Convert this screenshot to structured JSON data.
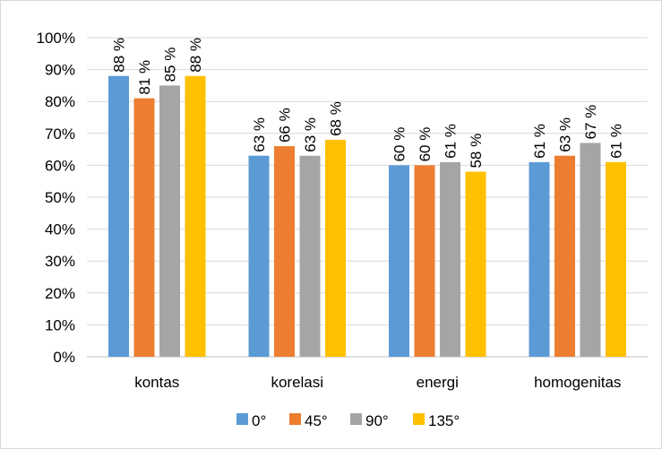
{
  "chart_data": {
    "type": "bar",
    "categories": [
      "kontas",
      "korelasi",
      "energi",
      "homogenitas"
    ],
    "series": [
      {
        "name": "0°",
        "values": [
          88,
          63,
          60,
          61
        ],
        "labels": [
          "88 %",
          "63 %",
          "60 %",
          "61 %"
        ],
        "color": "#5B9BD5"
      },
      {
        "name": "45°",
        "values": [
          81,
          66,
          60,
          63
        ],
        "labels": [
          "81 %",
          "66 %",
          "60 %",
          "63 %"
        ],
        "color": "#ED7D31"
      },
      {
        "name": "90°",
        "values": [
          85,
          63,
          61,
          67
        ],
        "labels": [
          "85 %",
          "63 %",
          "61 %",
          "67 %"
        ],
        "color": "#A5A5A5"
      },
      {
        "name": "135°",
        "values": [
          88,
          68,
          58,
          61
        ],
        "labels": [
          "88 %",
          "68 %",
          "58 %",
          "61 %"
        ],
        "color": "#FFC000"
      }
    ],
    "y_ticks": [
      "0%",
      "10%",
      "20%",
      "30%",
      "40%",
      "50%",
      "60%",
      "70%",
      "80%",
      "90%",
      "100%"
    ],
    "ylim": [
      0,
      100
    ],
    "grid": true,
    "legend": "bottom",
    "gridline_color": "#d9d9d9",
    "axis_color": "#bfbfbf"
  }
}
